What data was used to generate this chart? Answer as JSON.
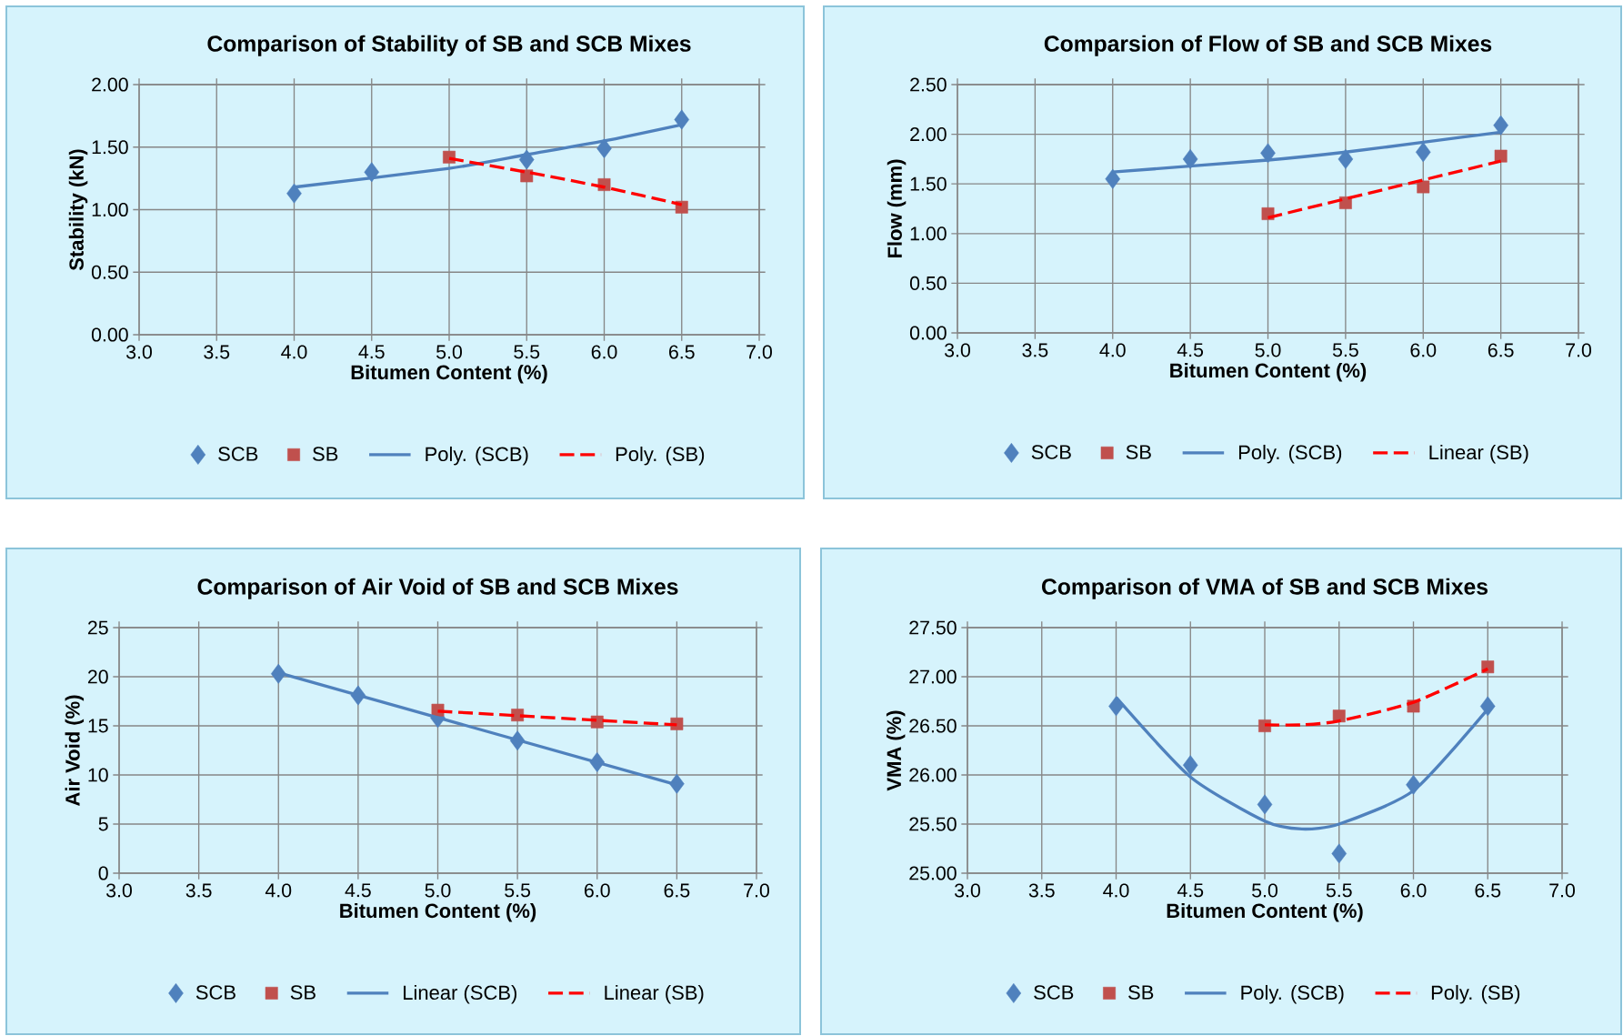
{
  "chart_data": [
    {
      "type": "scatter",
      "title": "Comparison of Stability of SB and SCB Mixes",
      "xlabel": "Bitumen Content (%)",
      "ylabel": "Stability (kN)",
      "xlim": [
        3,
        7
      ],
      "xticks": [
        {
          "value": 3,
          "label": "3.0"
        },
        {
          "value": 3.5,
          "label": "3.5"
        },
        {
          "value": 4,
          "label": "4.0"
        },
        {
          "value": 4.5,
          "label": "4.5"
        },
        {
          "value": 5,
          "label": "5.0"
        },
        {
          "value": 5.5,
          "label": "5.5"
        },
        {
          "value": 6,
          "label": "6.0"
        },
        {
          "value": 6.5,
          "label": "6.5"
        },
        {
          "value": 7,
          "label": "7.0"
        }
      ],
      "ylim": [
        0,
        2
      ],
      "yticks": [
        {
          "value": 0,
          "label": "0.00"
        },
        {
          "value": 0.5,
          "label": "0.50"
        },
        {
          "value": 1,
          "label": "1.00"
        },
        {
          "value": 1.5,
          "label": "1.50"
        },
        {
          "value": 2,
          "label": "2.00"
        }
      ],
      "grid": true,
      "legend": "bottom",
      "series": [
        {
          "name": "SCB",
          "type": "scatter",
          "marker": "diamond",
          "color": "#4f81bd",
          "x": [
            4.0,
            4.5,
            5.0,
            5.5,
            6.0,
            6.5
          ],
          "values": [
            1.13,
            1.3,
            null,
            1.4,
            1.49,
            1.72
          ]
        },
        {
          "name": "SB",
          "type": "scatter",
          "marker": "square",
          "color": "#c0504d",
          "x": [
            5.0,
            5.5,
            6.0,
            6.5
          ],
          "values": [
            1.42,
            1.27,
            1.2,
            1.02
          ]
        },
        {
          "name": "Poly. (SCB)",
          "type": "line",
          "marker": "none",
          "line_style": "solid",
          "color": "#4f81bd",
          "x": [
            4.0,
            5.0,
            5.5,
            6.0,
            6.5
          ],
          "values": [
            1.18,
            1.33,
            1.44,
            1.55,
            1.68
          ]
        },
        {
          "name": "Poly. (SB)",
          "type": "line",
          "marker": "none",
          "line_style": "dashed",
          "color": "#ff0000",
          "x": [
            5.0,
            5.5,
            6.0,
            6.5
          ],
          "values": [
            1.41,
            1.3,
            1.18,
            1.04
          ]
        }
      ]
    },
    {
      "type": "scatter",
      "title": "Comparsion of Flow of SB and SCB Mixes",
      "xlabel": "Bitumen Content (%)",
      "ylabel": "Flow (mm)",
      "xlim": [
        3,
        7
      ],
      "xticks": [
        {
          "value": 3,
          "label": "3.0"
        },
        {
          "value": 3.5,
          "label": "3.5"
        },
        {
          "value": 4,
          "label": "4.0"
        },
        {
          "value": 4.5,
          "label": "4.5"
        },
        {
          "value": 5,
          "label": "5.0"
        },
        {
          "value": 5.5,
          "label": "5.5"
        },
        {
          "value": 6,
          "label": "6.0"
        },
        {
          "value": 6.5,
          "label": "6.5"
        },
        {
          "value": 7,
          "label": "7.0"
        }
      ],
      "ylim": [
        0,
        2.5
      ],
      "yticks": [
        {
          "value": 0,
          "label": "0.00"
        },
        {
          "value": 0.5,
          "label": "0.50"
        },
        {
          "value": 1,
          "label": "1.00"
        },
        {
          "value": 1.5,
          "label": "1.50"
        },
        {
          "value": 2,
          "label": "2.00"
        },
        {
          "value": 2.5,
          "label": "2.50"
        }
      ],
      "grid": true,
      "legend": "bottom",
      "series": [
        {
          "name": "SCB",
          "type": "scatter",
          "marker": "diamond",
          "color": "#4f81bd",
          "x": [
            4.0,
            4.5,
            5.0,
            5.5,
            6.0,
            6.5
          ],
          "values": [
            1.55,
            1.75,
            1.81,
            1.75,
            1.82,
            2.09
          ]
        },
        {
          "name": "SB",
          "type": "scatter",
          "marker": "square",
          "color": "#c0504d",
          "x": [
            5.0,
            5.5,
            6.0,
            6.5
          ],
          "values": [
            1.2,
            1.31,
            1.47,
            1.78
          ]
        },
        {
          "name": "Poly. (SCB)",
          "type": "line",
          "marker": "none",
          "line_style": "solid",
          "color": "#4f81bd",
          "x": [
            4.0,
            5.0,
            5.5,
            6.0,
            6.5
          ],
          "values": [
            1.62,
            1.74,
            1.82,
            1.92,
            2.02
          ]
        },
        {
          "name": "Linear (SB)",
          "type": "line",
          "marker": "none",
          "line_style": "dashed",
          "color": "#ff0000",
          "x": [
            5.0,
            6.5
          ],
          "values": [
            1.16,
            1.73
          ]
        }
      ]
    },
    {
      "type": "scatter",
      "title": "Comparison of Air Void of SB and SCB Mixes",
      "xlabel": "Bitumen Content (%)",
      "ylabel": "Air Void (%)",
      "xlim": [
        3,
        7
      ],
      "xticks": [
        {
          "value": 3,
          "label": "3.0"
        },
        {
          "value": 3.5,
          "label": "3.5"
        },
        {
          "value": 4,
          "label": "4.0"
        },
        {
          "value": 4.5,
          "label": "4.5"
        },
        {
          "value": 5,
          "label": "5.0"
        },
        {
          "value": 5.5,
          "label": "5.5"
        },
        {
          "value": 6,
          "label": "6.0"
        },
        {
          "value": 6.5,
          "label": "6.5"
        },
        {
          "value": 7,
          "label": "7.0"
        }
      ],
      "ylim": [
        0,
        25
      ],
      "yticks": [
        0,
        5,
        10,
        15,
        20,
        25
      ],
      "grid": true,
      "legend": "bottom",
      "series": [
        {
          "name": "SCB",
          "type": "scatter",
          "marker": "diamond",
          "color": "#4f81bd",
          "x": [
            4.0,
            4.5,
            5.0,
            5.5,
            6.0,
            6.5
          ],
          "values": [
            20.3,
            18.1,
            15.8,
            13.5,
            11.3,
            9.1
          ]
        },
        {
          "name": "SB",
          "type": "scatter",
          "marker": "square",
          "color": "#c0504d",
          "x": [
            5.0,
            5.5,
            6.0,
            6.5
          ],
          "values": [
            16.6,
            16.1,
            15.4,
            15.2
          ]
        },
        {
          "name": "Linear (SCB)",
          "type": "line",
          "marker": "none",
          "line_style": "solid",
          "color": "#4f81bd",
          "x": [
            4.0,
            6.5
          ],
          "values": [
            20.4,
            9.0
          ]
        },
        {
          "name": "Linear (SB)",
          "type": "line",
          "marker": "none",
          "line_style": "dashed",
          "color": "#ff0000",
          "x": [
            5.0,
            6.5
          ],
          "values": [
            16.5,
            15.1
          ]
        }
      ]
    },
    {
      "type": "scatter",
      "title": "Comparison of VMA of SB and SCB Mixes",
      "xlabel": "Bitumen Content (%)",
      "ylabel": "VMA (%)",
      "xlim": [
        3,
        7
      ],
      "xticks": [
        {
          "value": 3,
          "label": "3.0"
        },
        {
          "value": 3.5,
          "label": "3.5"
        },
        {
          "value": 4,
          "label": "4.0"
        },
        {
          "value": 4.5,
          "label": "4.5"
        },
        {
          "value": 5,
          "label": "5.0"
        },
        {
          "value": 5.5,
          "label": "5.5"
        },
        {
          "value": 6,
          "label": "6.0"
        },
        {
          "value": 6.5,
          "label": "6.5"
        },
        {
          "value": 7,
          "label": "7.0"
        }
      ],
      "ylim": [
        25,
        27.5
      ],
      "yticks": [
        {
          "value": 25,
          "label": "25.00"
        },
        {
          "value": 25.5,
          "label": "25.50"
        },
        {
          "value": 26,
          "label": "26.00"
        },
        {
          "value": 26.5,
          "label": "26.50"
        },
        {
          "value": 27,
          "label": "27.00"
        },
        {
          "value": 27.5,
          "label": "27.50"
        }
      ],
      "grid": true,
      "legend": "bottom",
      "series": [
        {
          "name": "SCB",
          "type": "scatter",
          "marker": "diamond",
          "color": "#4f81bd",
          "x": [
            4.0,
            4.5,
            5.0,
            5.5,
            6.0,
            6.5
          ],
          "values": [
            26.7,
            26.1,
            25.7,
            25.2,
            25.9,
            26.7
          ]
        },
        {
          "name": "SB",
          "type": "scatter",
          "marker": "square",
          "color": "#c0504d",
          "x": [
            5.0,
            5.5,
            6.0,
            6.5
          ],
          "values": [
            26.5,
            26.6,
            26.7,
            27.1
          ]
        },
        {
          "name": "Poly. (SCB)",
          "type": "line",
          "marker": "none",
          "line_style": "solid",
          "color": "#4f81bd",
          "x": [
            4.0,
            4.5,
            5.0,
            5.25,
            5.5,
            6.0,
            6.5
          ],
          "values": [
            26.79,
            25.98,
            25.53,
            25.45,
            25.5,
            25.84,
            26.67
          ]
        },
        {
          "name": "Poly. (SB)",
          "type": "line",
          "marker": "none",
          "line_style": "dashed",
          "color": "#ff0000",
          "x": [
            5.0,
            5.25,
            5.5,
            6.0,
            6.5
          ],
          "values": [
            26.51,
            26.51,
            26.55,
            26.74,
            27.08
          ]
        }
      ]
    }
  ]
}
